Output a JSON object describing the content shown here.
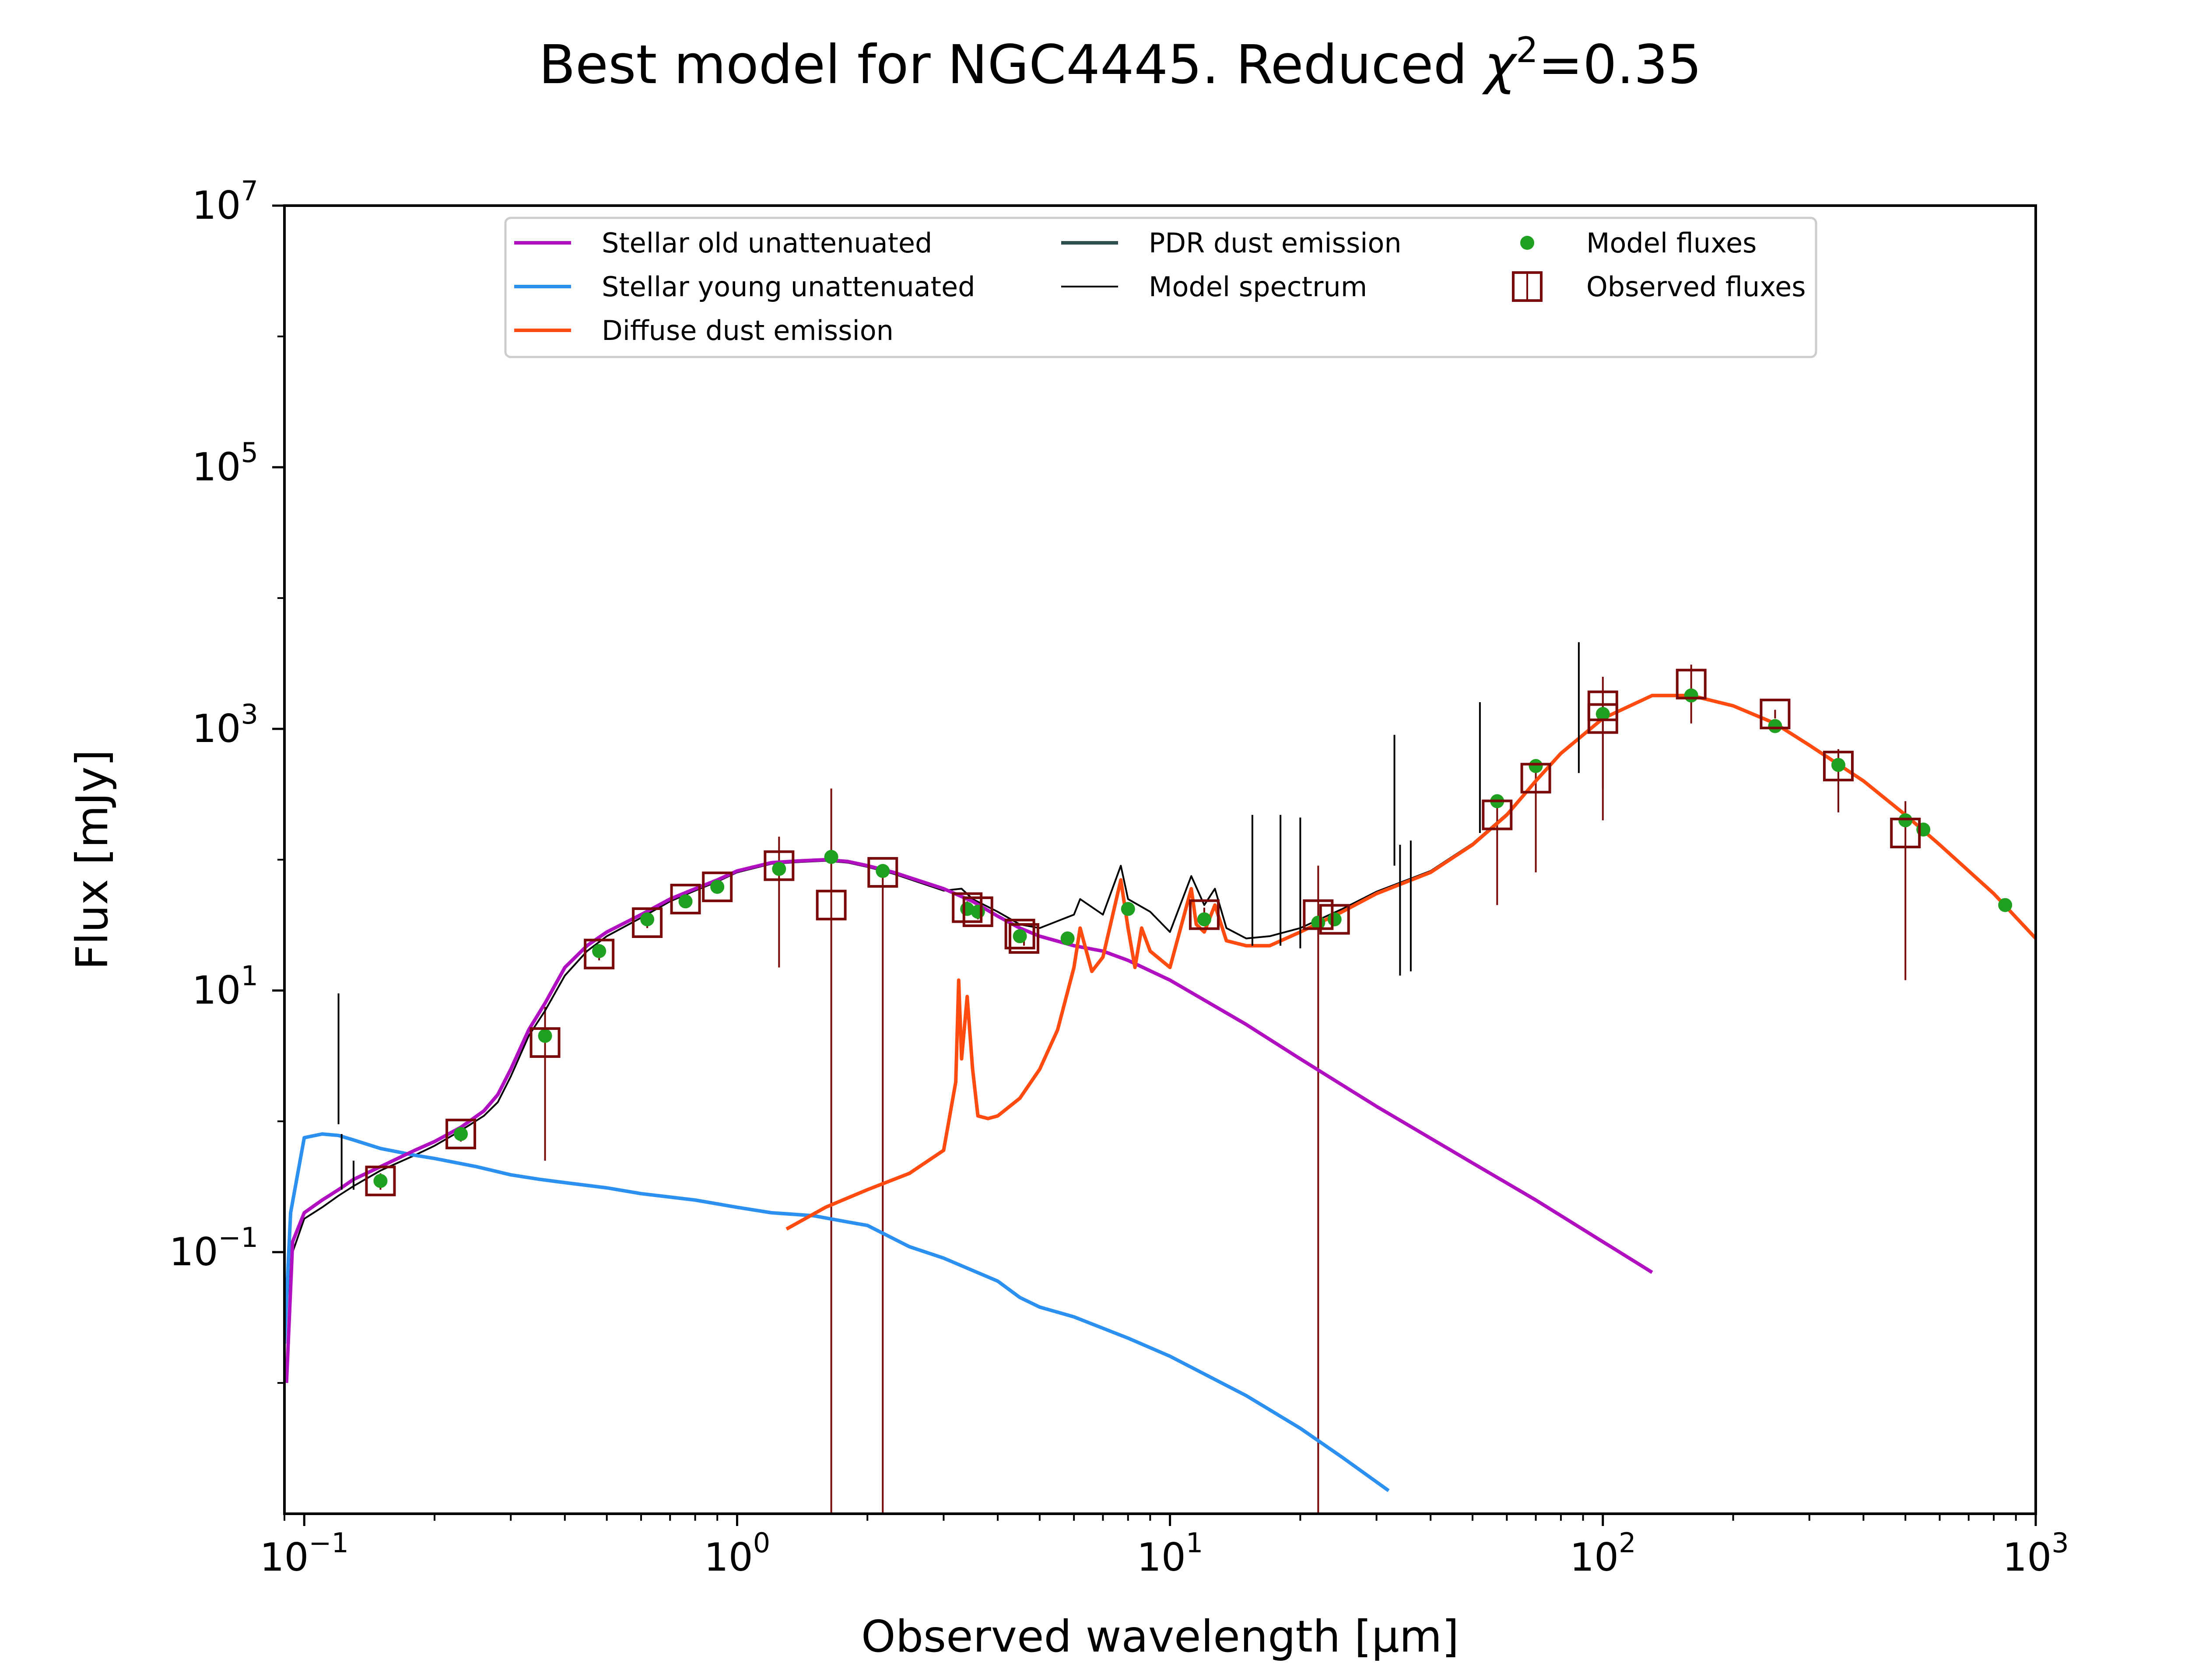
{
  "chart_data": {
    "type": "line",
    "title": "Best model for NGC4445. Reduced χ²=0.35",
    "title_parts": {
      "prefix": "Best model for NGC4445. Reduced ",
      "chi": "χ",
      "sup": "2",
      "suffix": "=0.35"
    },
    "xlabel": "Observed wavelength [μm]",
    "ylabel": "Flux [mJy]",
    "x_scale": "log",
    "y_scale": "log",
    "xlim": [
      0.09,
      1000
    ],
    "ylim": [
      0.001,
      10000000
    ],
    "x_ticks": [
      {
        "value": 0.1,
        "base": "10",
        "exp": "−1"
      },
      {
        "value": 1,
        "base": "10",
        "exp": "0"
      },
      {
        "value": 10,
        "base": "10",
        "exp": "1"
      },
      {
        "value": 100,
        "base": "10",
        "exp": "2"
      },
      {
        "value": 1000,
        "base": "10",
        "exp": "3"
      }
    ],
    "y_ticks": [
      {
        "value": 0.1,
        "base": "10",
        "exp": "−1"
      },
      {
        "value": 10,
        "base": "10",
        "exp": "1"
      },
      {
        "value": 1000,
        "base": "10",
        "exp": "3"
      },
      {
        "value": 100000,
        "base": "10",
        "exp": "5"
      },
      {
        "value": 10000000,
        "base": "10",
        "exp": "7"
      }
    ],
    "legend": {
      "placement": "top-center",
      "entries": [
        {
          "key": "stellar_old",
          "label": "Stellar old unattenuated",
          "kind": "line"
        },
        {
          "key": "stellar_young",
          "label": "Stellar young unattenuated",
          "kind": "line"
        },
        {
          "key": "diffuse_dust",
          "label": "Diffuse dust emission",
          "kind": "line"
        },
        {
          "key": "pdr_dust",
          "label": "PDR dust emission",
          "kind": "line"
        },
        {
          "key": "model_spectrum",
          "label": "Model spectrum",
          "kind": "line"
        },
        {
          "key": "model_fluxes",
          "label": "Model fluxes",
          "kind": "dot"
        },
        {
          "key": "observed_fluxes",
          "label": "Observed fluxes",
          "kind": "box"
        }
      ]
    },
    "colors": {
      "stellar_old": "#b010c0",
      "stellar_young": "#2b90f0",
      "diffuse_dust": "#ff4a10",
      "pdr_dust": "#2f4f4f",
      "model_spectrum": "#000000",
      "model_fluxes": "#20a020",
      "observed_fluxes": "#7a0a0a"
    },
    "series": [
      {
        "key": "stellar_old",
        "x": [
          0.091,
          0.094,
          0.1,
          0.11,
          0.12,
          0.13,
          0.15,
          0.18,
          0.2,
          0.23,
          0.26,
          0.28,
          0.3,
          0.33,
          0.36,
          0.4,
          0.45,
          0.5,
          0.6,
          0.7,
          0.8,
          0.9,
          1.0,
          1.2,
          1.4,
          1.6,
          1.8,
          2.0,
          2.3,
          2.6,
          3.0,
          3.5,
          4.0,
          4.5,
          5.0,
          6.0,
          7.0,
          8.0,
          10,
          15,
          20,
          30,
          50,
          70,
          100,
          130
        ],
        "y": [
          0.01,
          0.12,
          0.2,
          0.25,
          0.3,
          0.36,
          0.45,
          0.6,
          0.7,
          0.9,
          1.2,
          1.6,
          2.5,
          5.0,
          8.0,
          15,
          22,
          28,
          38,
          50,
          60,
          70,
          82,
          95,
          98,
          100,
          97,
          90,
          80,
          70,
          60,
          48,
          37,
          30,
          26,
          22,
          20,
          17,
          12,
          5.5,
          3.0,
          1.3,
          0.48,
          0.25,
          0.12,
          0.07
        ]
      },
      {
        "key": "stellar_young",
        "x": [
          0.09,
          0.093,
          0.1,
          0.11,
          0.12,
          0.13,
          0.15,
          0.18,
          0.2,
          0.25,
          0.3,
          0.35,
          0.4,
          0.5,
          0.6,
          0.8,
          1.0,
          1.2,
          1.5,
          1.8,
          2.0,
          2.5,
          3.0,
          4.0,
          4.5,
          5.0,
          6.0,
          8.0,
          10,
          15,
          20,
          25,
          32
        ],
        "y": [
          0.02,
          0.2,
          0.75,
          0.8,
          0.78,
          0.72,
          0.62,
          0.55,
          0.52,
          0.45,
          0.39,
          0.36,
          0.34,
          0.31,
          0.28,
          0.25,
          0.22,
          0.2,
          0.19,
          0.17,
          0.16,
          0.11,
          0.09,
          0.06,
          0.045,
          0.038,
          0.032,
          0.022,
          0.016,
          0.008,
          0.0045,
          0.0027,
          0.0015
        ]
      },
      {
        "key": "diffuse_dust",
        "x": [
          1.3,
          1.6,
          2.0,
          2.5,
          3.0,
          3.2,
          3.25,
          3.3,
          3.4,
          3.5,
          3.6,
          3.8,
          4.0,
          4.5,
          5.0,
          5.5,
          6.0,
          6.2,
          6.6,
          7.0,
          7.7,
          8.0,
          8.3,
          8.6,
          9.0,
          10,
          11.2,
          11.5,
          12,
          12.7,
          13.5,
          15,
          17,
          20,
          25,
          30,
          40,
          50,
          60,
          70,
          80,
          100,
          130,
          160,
          200,
          250,
          300,
          400,
          500,
          600,
          800,
          1000
        ],
        "y": [
          0.15,
          0.22,
          0.3,
          0.4,
          0.6,
          2.0,
          12,
          3.0,
          9.0,
          2.5,
          1.1,
          1.05,
          1.1,
          1.5,
          2.5,
          5.0,
          15,
          30,
          14,
          18,
          70,
          30,
          15,
          30,
          20,
          15,
          60,
          32,
          28,
          45,
          24,
          22,
          22,
          28,
          40,
          55,
          80,
          130,
          220,
          400,
          650,
          1200,
          1800,
          1800,
          1500,
          1100,
          750,
          400,
          220,
          130,
          55,
          25
        ]
      },
      {
        "key": "model_spectrum",
        "x": [
          0.09,
          0.094,
          0.1,
          0.11,
          0.12,
          0.13,
          0.15,
          0.18,
          0.2,
          0.23,
          0.26,
          0.28,
          0.3,
          0.33,
          0.36,
          0.4,
          0.45,
          0.5,
          0.6,
          0.7,
          0.8,
          0.9,
          1.0,
          1.2,
          1.4,
          1.6,
          1.8,
          2.0,
          2.3,
          2.6,
          3.0,
          3.3,
          3.5,
          4.0,
          4.5,
          5.0,
          6.0,
          6.2,
          7.0,
          7.7,
          8.0,
          9.0,
          10,
          11.2,
          12,
          12.7,
          13.5,
          15,
          17,
          20,
          25,
          30,
          40,
          50,
          60,
          70,
          80,
          100,
          130,
          160,
          200,
          250,
          300,
          400,
          500,
          600,
          800,
          1000
        ],
        "y": [
          0.03,
          0.1,
          0.18,
          0.22,
          0.27,
          0.32,
          0.42,
          0.55,
          0.65,
          0.85,
          1.1,
          1.4,
          2.2,
          4.5,
          7.0,
          13,
          20,
          26,
          36,
          48,
          58,
          68,
          80,
          93,
          96,
          98,
          95,
          88,
          78,
          68,
          58,
          60,
          50,
          40,
          32,
          30,
          38,
          50,
          38,
          90,
          50,
          40,
          28,
          75,
          45,
          60,
          30,
          25,
          26,
          30,
          42,
          57,
          82,
          133,
          225,
          405,
          655,
          1205,
          1805,
          1805,
          1505,
          1105,
          755,
          405,
          222,
          131,
          56,
          25
        ]
      }
    ],
    "model_fluxes": {
      "x": [
        0.15,
        0.23,
        0.36,
        0.48,
        0.62,
        0.76,
        0.9,
        1.25,
        1.65,
        2.17,
        3.4,
        3.6,
        4.5,
        5.8,
        8.0,
        12,
        22,
        24,
        57,
        70,
        100,
        160,
        250,
        350,
        500,
        550,
        850
      ],
      "y": [
        0.35,
        0.8,
        4.5,
        20,
        35,
        48,
        62,
        85,
        105,
        82,
        42,
        40,
        26,
        25,
        42,
        35,
        33,
        35,
        280,
        520,
        1300,
        1800,
        1050,
        530,
        200,
        170,
        45
      ]
    },
    "observed_fluxes": {
      "x": [
        0.15,
        0.23,
        0.36,
        0.48,
        0.62,
        0.76,
        0.9,
        1.25,
        1.65,
        2.17,
        3.4,
        3.6,
        4.5,
        4.6,
        12,
        22,
        24,
        57,
        70,
        100,
        100,
        160,
        250,
        350,
        500
      ],
      "y": [
        0.35,
        0.8,
        4.0,
        19,
        33,
        50,
        62,
        90,
        45,
        80,
        43,
        40,
        27,
        25,
        38,
        38,
        35,
        220,
        420,
        1200,
        1500,
        2200,
        1300,
        520,
        160
      ],
      "err_low": [
        0.3,
        0.7,
        0.5,
        17,
        30,
        45,
        60,
        15,
        0.001,
        0.001,
        38,
        35,
        24,
        22,
        33,
        0.001,
        31,
        45,
        80,
        200,
        350,
        1100,
        1200,
        230,
        12
      ],
      "err_high": [
        0.4,
        0.9,
        7.5,
        21,
        36,
        55,
        64,
        150,
        350,
        90,
        48,
        45,
        30,
        28,
        43,
        90,
        39,
        300,
        540,
        2000,
        2500,
        3100,
        1400,
        700,
        280
      ]
    },
    "lines": {
      "x": [
        0.12,
        0.122,
        0.13,
        15.5,
        18,
        20,
        33,
        34,
        36,
        52,
        88
      ],
      "y": [
        9.5,
        0.8,
        0.5,
        220,
        220,
        210,
        900,
        130,
        140,
        1600,
        4600
      ]
    }
  }
}
